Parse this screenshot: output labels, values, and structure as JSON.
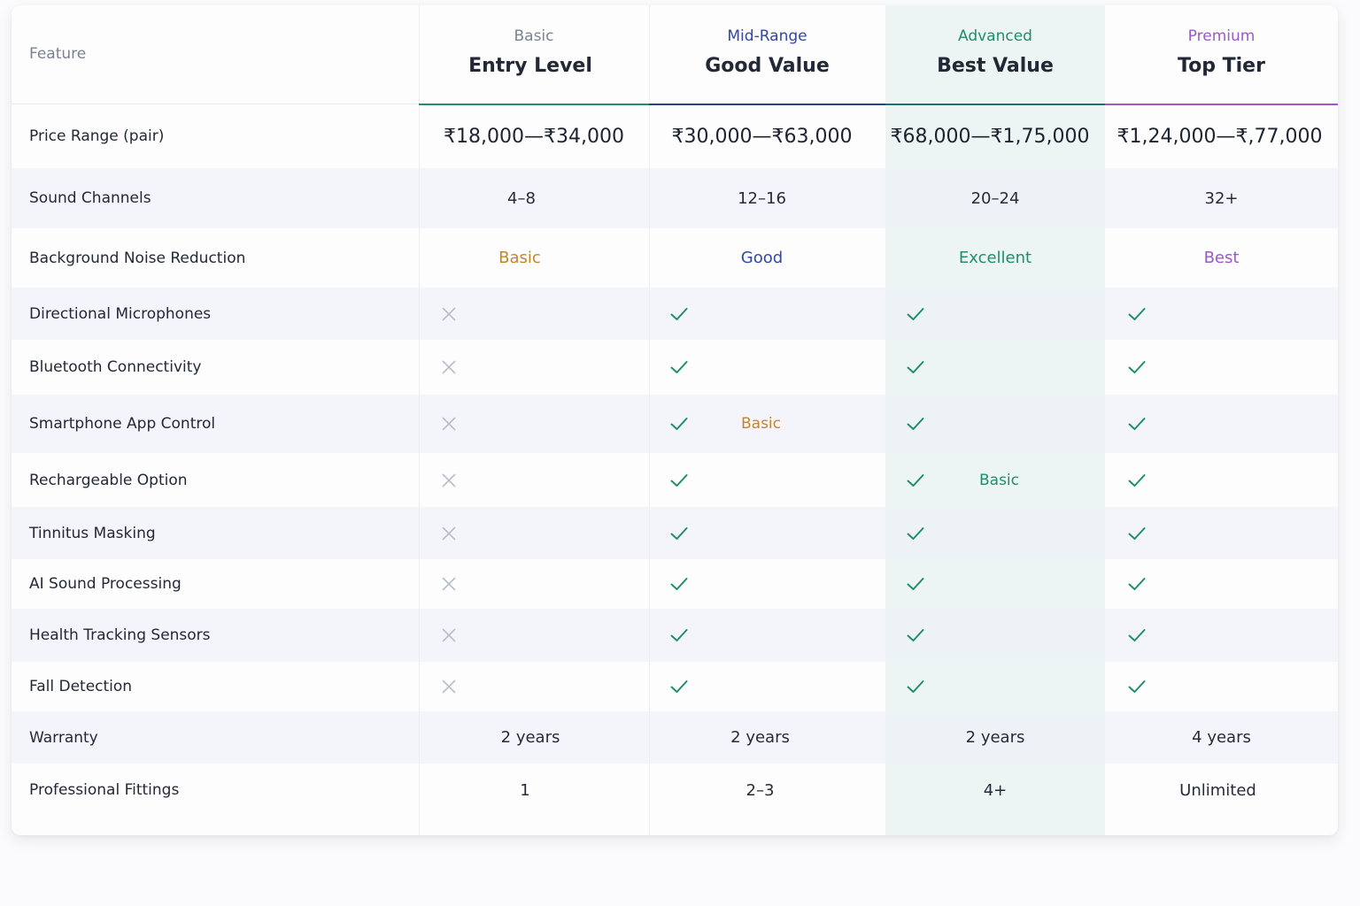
{
  "colors": {
    "basic": "#c2862a",
    "mid": "#3348a0",
    "advanced": "#1f8e6d",
    "premium": "#9b59c9",
    "check": "#1f8e6d",
    "cross": "#b6bcc8",
    "basic_tier_label": "#7c8494"
  },
  "header": {
    "feature_label": "Feature",
    "columns": [
      {
        "tier": "Basic",
        "name": "Entry Level"
      },
      {
        "tier": "Mid-Range",
        "name": "Good Value"
      },
      {
        "tier": "Advanced",
        "name": "Best Value"
      },
      {
        "tier": "Premium",
        "name": "Top Tier"
      }
    ]
  },
  "rows": [
    {
      "feature": "Price Range (pair)",
      "type": "price",
      "values": [
        "₹18,000—₹34,000",
        "₹30,000—₹63,000",
        "₹68,000—₹1,75,000",
        "₹1,24,000—₹,77,000"
      ]
    },
    {
      "feature": "Sound Channels",
      "type": "text",
      "values": [
        "4–8",
        "12–16",
        "20–24",
        "32+"
      ]
    },
    {
      "feature": "Background Noise Reduction",
      "type": "rating",
      "values": [
        "Basic",
        "Good",
        "Excellent",
        "Best"
      ]
    },
    {
      "feature": "Directional Microphones",
      "type": "bool",
      "values": [
        false,
        true,
        true,
        true
      ]
    },
    {
      "feature": "Bluetooth Connectivity",
      "type": "bool",
      "values": [
        false,
        true,
        true,
        true
      ]
    },
    {
      "feature": "Smartphone App Control",
      "type": "bool",
      "values": [
        false,
        true,
        true,
        true
      ],
      "notes": [
        "",
        "Basic",
        "",
        ""
      ]
    },
    {
      "feature": "Rechargeable Option",
      "type": "bool",
      "values": [
        false,
        true,
        true,
        true
      ],
      "notes": [
        "",
        "",
        "Basic",
        ""
      ]
    },
    {
      "feature": "Tinnitus Masking",
      "type": "bool",
      "values": [
        false,
        true,
        true,
        true
      ]
    },
    {
      "feature": "AI Sound Processing",
      "type": "bool",
      "values": [
        false,
        true,
        true,
        true
      ]
    },
    {
      "feature": "Health Tracking Sensors",
      "type": "bool",
      "values": [
        false,
        true,
        true,
        true
      ]
    },
    {
      "feature": "Fall Detection",
      "type": "bool",
      "values": [
        false,
        true,
        true,
        true
      ]
    },
    {
      "feature": "Warranty",
      "type": "text",
      "values": [
        "2 years",
        "2 years",
        "2 years",
        "4 years"
      ]
    },
    {
      "feature": "Professional Fittings",
      "type": "text",
      "values": [
        "1",
        "2–3",
        "4+",
        "Unlimited"
      ]
    }
  ]
}
